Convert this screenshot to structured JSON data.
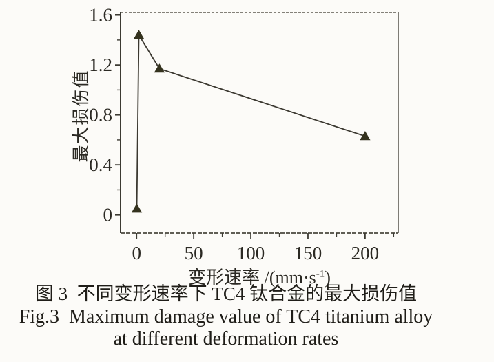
{
  "figure": {
    "caption_zh": "图 3  不同变形速率下 TC4 钛合金的最大损伤值",
    "caption_en_line1": "Fig.3  Maximum damage value of TC4 titanium alloy",
    "caption_en_line2": "at different deformation rates"
  },
  "chart_data": {
    "type": "line",
    "title": "",
    "xlabel": "变形速率 /(mm·s-1)",
    "xlabel_parts": {
      "prefix": "变形速率 /(mm·s",
      "sup": "-1",
      "suffix": ")"
    },
    "ylabel": "最大损伤值",
    "x": [
      0.2,
      2,
      20,
      200
    ],
    "y": [
      0.05,
      1.44,
      1.17,
      0.63
    ],
    "marker": "filled-triangle-up",
    "xlim": [
      -14,
      229
    ],
    "ylim": [
      -0.145,
      1.62
    ],
    "x_ticks": {
      "values": [
        0,
        50,
        100,
        150,
        200
      ],
      "labels": [
        "0",
        "50",
        "100",
        "150",
        "200"
      ]
    },
    "x_minor_ticks": [
      25,
      75,
      125,
      175,
      225
    ],
    "y_ticks": {
      "values": [
        0,
        0.4,
        0.8,
        1.2,
        1.6
      ],
      "labels": [
        "0",
        "0.4",
        "0.8",
        "1.2",
        "1.6"
      ]
    },
    "y_minor_ticks": [
      0.2,
      0.6,
      1.0,
      1.4
    ],
    "grid": false,
    "legend": "none",
    "colors": {
      "line": "#3b3830",
      "marker": "#34321e",
      "axis": "#3c3a32",
      "frame_light": "#5c594f",
      "tick_text": "#2b2923",
      "background": "#fcfbf8"
    }
  }
}
